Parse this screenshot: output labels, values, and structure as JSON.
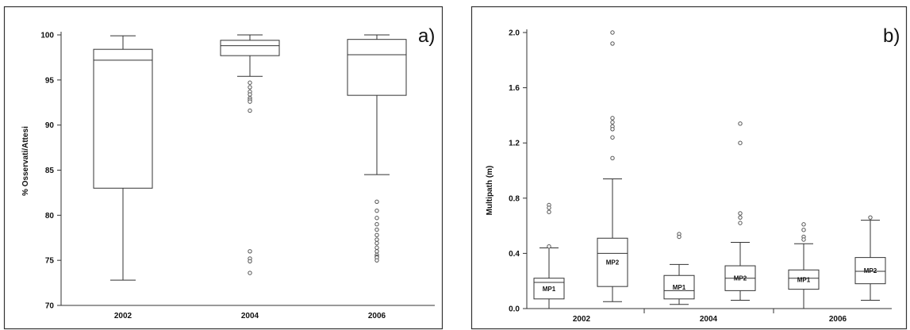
{
  "chart_data": [
    {
      "type": "box",
      "panel_label": "a)",
      "ylabel": "% Osservati/Attesi",
      "ylim": [
        70,
        100
      ],
      "yticks": [
        70,
        75,
        80,
        85,
        90,
        95,
        100
      ],
      "categories": [
        "2002",
        "2004",
        "2006"
      ],
      "boxes": [
        {
          "category": "2002",
          "whisker_low": 72.8,
          "q1": 83.0,
          "median": 97.2,
          "q3": 98.4,
          "whisker_high": 99.9,
          "outliers": []
        },
        {
          "category": "2004",
          "whisker_low": 95.4,
          "q1": 97.7,
          "median": 98.8,
          "q3": 99.4,
          "whisker_high": 100.0,
          "outliers": [
            94.7,
            94.2,
            93.7,
            93.4,
            93.0,
            92.8,
            92.6,
            91.6,
            76.0,
            75.2,
            74.9,
            73.6
          ]
        },
        {
          "category": "2006",
          "whisker_low": 84.5,
          "q1": 93.3,
          "median": 97.8,
          "q3": 99.5,
          "whisker_high": 100.0,
          "outliers": [
            81.5,
            80.5,
            79.7,
            79.0,
            78.4,
            77.8,
            77.3,
            76.9,
            76.4,
            76.0,
            75.6,
            75.4,
            75.3,
            75.0
          ]
        }
      ]
    },
    {
      "type": "box",
      "panel_label": "b)",
      "ylabel": "Multipath (m)",
      "ylim": [
        0,
        2.0
      ],
      "yticks": [
        "0.0",
        "0.4",
        "0.8",
        "1.2",
        "1.6",
        "2.0"
      ],
      "categories": [
        "2002",
        "2004",
        "2006"
      ],
      "boxes": [
        {
          "group": "2002",
          "label": "MP1",
          "whisker_low": 0.0,
          "q1": 0.07,
          "median": 0.19,
          "q3": 0.22,
          "whisker_high": 0.44,
          "outliers": [
            0.75,
            0.73,
            0.7,
            0.45
          ]
        },
        {
          "group": "2002",
          "label": "MP2",
          "whisker_low": 0.05,
          "q1": 0.16,
          "median": 0.4,
          "q3": 0.51,
          "whisker_high": 0.94,
          "outliers": [
            2.0,
            1.92,
            1.38,
            1.35,
            1.32,
            1.3,
            1.24,
            1.09
          ]
        },
        {
          "group": "2004",
          "label": "MP1",
          "whisker_low": 0.03,
          "q1": 0.07,
          "median": 0.13,
          "q3": 0.24,
          "whisker_high": 0.32,
          "outliers": [
            0.54,
            0.52
          ]
        },
        {
          "group": "2004",
          "label": "MP2",
          "whisker_low": 0.06,
          "q1": 0.13,
          "median": 0.22,
          "q3": 0.31,
          "whisker_high": 0.48,
          "outliers": [
            1.34,
            1.2,
            0.69,
            0.66,
            0.62
          ]
        },
        {
          "group": "2006",
          "label": "MP1",
          "whisker_low": 0.0,
          "q1": 0.14,
          "median": 0.22,
          "q3": 0.28,
          "whisker_high": 0.47,
          "outliers": [
            0.61,
            0.57,
            0.52,
            0.5
          ]
        },
        {
          "group": "2006",
          "label": "MP2",
          "whisker_low": 0.06,
          "q1": 0.18,
          "median": 0.27,
          "q3": 0.37,
          "whisker_high": 0.64,
          "outliers": [
            0.66
          ]
        }
      ]
    }
  ]
}
